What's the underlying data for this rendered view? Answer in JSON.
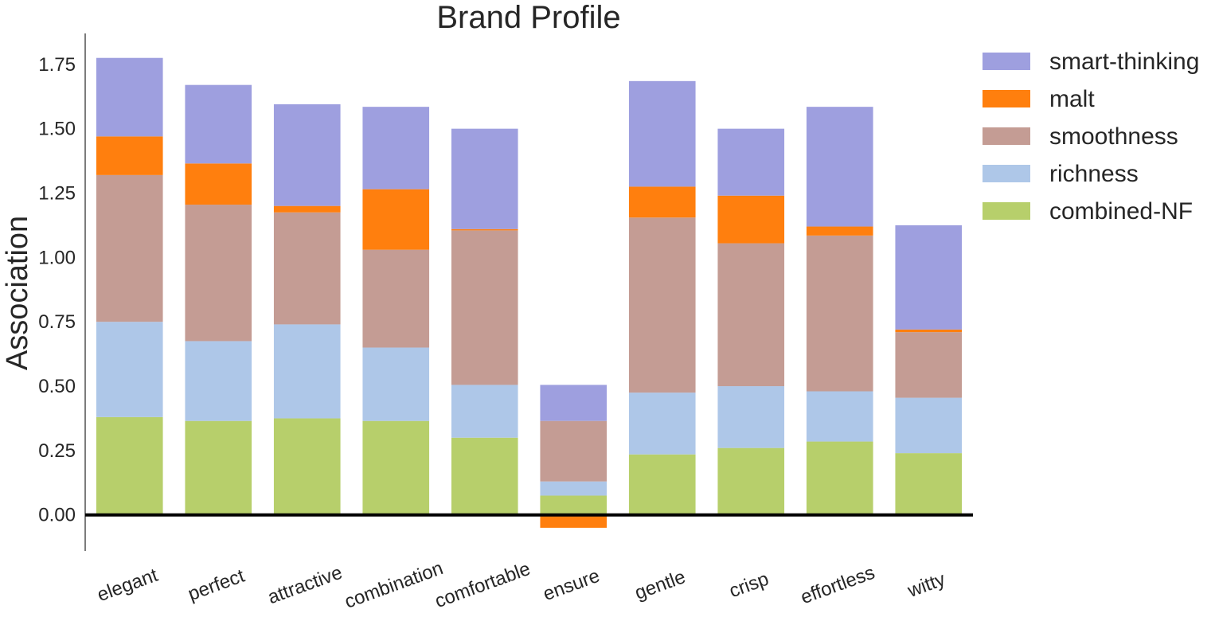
{
  "chart_data": {
    "type": "bar",
    "stacked": true,
    "title": "Brand Profile",
    "xlabel": "",
    "ylabel": "Association",
    "ylim": [
      -0.14,
      1.87
    ],
    "yticks": [
      "0.00",
      "0.25",
      "0.50",
      "0.75",
      "1.00",
      "1.25",
      "1.50",
      "1.75"
    ],
    "categories": [
      "elegant",
      "perfect",
      "attractive",
      "combination",
      "comfortable",
      "ensure",
      "gentle",
      "crisp",
      "effortless",
      "witty"
    ],
    "legend_position": "right",
    "series": [
      {
        "name": "combined-NF",
        "color": "#b7cf6b",
        "values": [
          0.38,
          0.365,
          0.375,
          0.365,
          0.3,
          0.075,
          0.235,
          0.26,
          0.285,
          0.24
        ]
      },
      {
        "name": "richness",
        "color": "#aec7e8",
        "values": [
          0.37,
          0.31,
          0.365,
          0.285,
          0.205,
          0.055,
          0.24,
          0.24,
          0.195,
          0.215
        ]
      },
      {
        "name": "smoothness",
        "color": "#c49c94",
        "values": [
          0.57,
          0.53,
          0.435,
          0.38,
          0.6,
          0.235,
          0.68,
          0.555,
          0.605,
          0.255
        ]
      },
      {
        "name": "malt",
        "color": "#ff7f0e",
        "values": [
          0.15,
          0.16,
          0.025,
          0.235,
          0.005,
          -0.05,
          0.12,
          0.185,
          0.035,
          0.01
        ]
      },
      {
        "name": "smart-thinking",
        "color": "#9e9fdf",
        "values": [
          0.305,
          0.305,
          0.395,
          0.32,
          0.39,
          0.14,
          0.41,
          0.26,
          0.465,
          0.405
        ]
      }
    ],
    "legend_order": [
      "smart-thinking",
      "malt",
      "smoothness",
      "richness",
      "combined-NF"
    ]
  }
}
